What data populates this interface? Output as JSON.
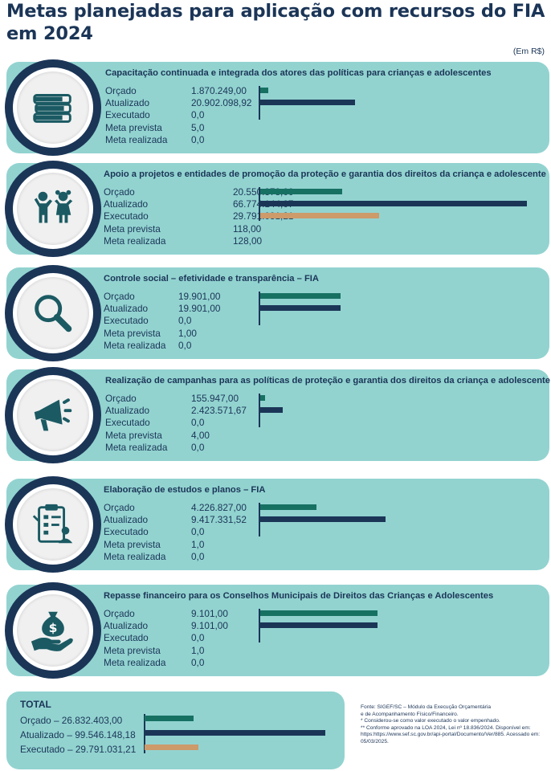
{
  "title": "Metas planejadas para aplicação com recursos do FIA em 2024",
  "unit": "(Em R$)",
  "colors": {
    "card": "#92d3d0",
    "orcado": "#177163",
    "atualizado": "#1b3557",
    "executado": "#cd9a6a",
    "dark": "#1b3557"
  },
  "row_labels": {
    "orcado": "Orçado",
    "atualizado": "Atualizado",
    "executado": "Executado",
    "meta_prevista": "Meta prevista",
    "meta_realizada": "Meta realizada"
  },
  "chart_data": [
    {
      "type": "bar",
      "title": "Capacitação continuada e integrada dos atores das políticas para crianças e adolescentes",
      "icon": "books-icon",
      "categories": [
        "Orçado",
        "Atualizado",
        "Executado"
      ],
      "values": [
        1870249.0,
        20902098.92,
        0.0
      ],
      "value_labels": [
        "1.870.249,00",
        "20.902.098,92",
        "0,0"
      ],
      "meta_prevista": "5,0",
      "meta_realizada": "0,0"
    },
    {
      "type": "bar",
      "title": "Apoio a projetos e entidades de promoção da proteção e garantia dos direitos da criança e adolescente",
      "icon": "children-icon",
      "categories": [
        "Orçado",
        "Atualizado",
        "Executado"
      ],
      "values": [
        20550378.0,
        66774144.07,
        29791031.21
      ],
      "value_labels": [
        "20.550.378,00",
        "66.774.144,07",
        "29.791.031,21"
      ],
      "meta_prevista": "118,00",
      "meta_realizada": "128,00"
    },
    {
      "type": "bar",
      "title": "Controle social – efetividade e transparência – FIA",
      "icon": "magnifier-icon",
      "categories": [
        "Orçado",
        "Atualizado",
        "Executado"
      ],
      "values": [
        19901.0,
        19901.0,
        0.0
      ],
      "value_labels": [
        "19.901,00",
        "19.901,00",
        "0,0"
      ],
      "meta_prevista": "1,00",
      "meta_realizada": "0,0"
    },
    {
      "type": "bar",
      "title": "Realização de campanhas para as políticas de proteção e garantia dos direitos da criança e adolescente",
      "icon": "megaphone-icon",
      "categories": [
        "Orçado",
        "Atualizado",
        "Executado"
      ],
      "values": [
        155947.0,
        2423571.67,
        0.0
      ],
      "value_labels": [
        "155.947,00",
        "2.423.571,67",
        "0,0"
      ],
      "meta_prevista": "4,00",
      "meta_realizada": "0,0"
    },
    {
      "type": "bar",
      "title": "Elaboração de estudos e planos – FIA",
      "icon": "clipboard-icon",
      "categories": [
        "Orçado",
        "Atualizado",
        "Executado"
      ],
      "values": [
        4226827.0,
        9417331.52,
        0.0
      ],
      "value_labels": [
        "4.226.827,00",
        "9.417.331,52",
        "0,0"
      ],
      "meta_prevista": "1,0",
      "meta_realizada": "0,0"
    },
    {
      "type": "bar",
      "title": "Repasse financeiro para os Conselhos Municipais de Direitos das Crianças e Adolescentes",
      "icon": "money-hand-icon",
      "categories": [
        "Orçado",
        "Atualizado",
        "Executado"
      ],
      "values": [
        9101.0,
        9101.0,
        0.0
      ],
      "value_labels": [
        "9.101,00",
        "9.101,00",
        "0,0"
      ],
      "meta_prevista": "1,0",
      "meta_realizada": "0,0"
    },
    {
      "type": "bar",
      "title": "TOTAL",
      "categories": [
        "Orçado",
        "Atualizado",
        "Executado"
      ],
      "values": [
        26832403.0,
        99546148.18,
        29791031.21
      ],
      "labels": [
        "Orçado – 26.832.403,00",
        "Atualizado – 99.546.148,18",
        "Executado – 29.791.031,21"
      ]
    }
  ],
  "notes": [
    "Fonte: SIGEF/SC – Módulo da Execução Orçamentária",
    "e de Acompanhamento Físico/Financeiro.",
    "* Considerou-se como valor executado o valor empenhado.",
    "** Conforme aprovado na LOA 2024, Lei nº 18.836/2024. Disponível em: https:https://www.sef.sc.gov.br/api-portal/Documento/Ver/885. Acessado em: 05/03/2025."
  ]
}
